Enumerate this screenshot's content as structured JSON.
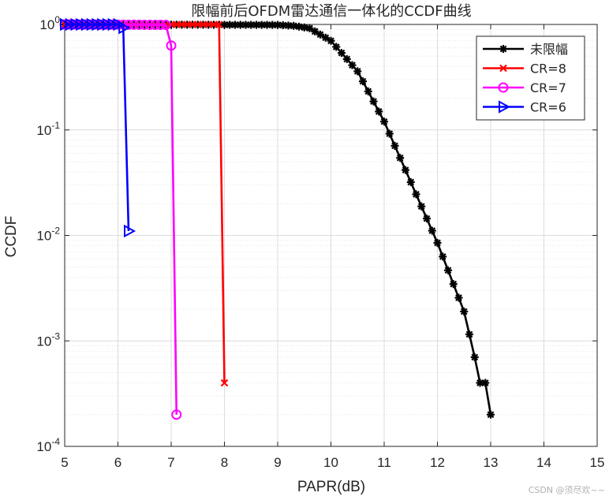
{
  "chart_data": {
    "type": "line",
    "title": "限幅前后OFDM雷达通信一体化的CCDF曲线",
    "xlabel": "PAPR(dB)",
    "ylabel": "CCDF",
    "xlim": [
      5,
      15
    ],
    "ylim_log10": [
      -4,
      0
    ],
    "yscale": "log",
    "grid": true,
    "legend_position": "top-right",
    "x_ticks": [
      "5",
      "6",
      "7",
      "8",
      "9",
      "10",
      "11",
      "12",
      "13",
      "14",
      "15"
    ],
    "y_ticks": [
      {
        "base": "10",
        "exp": "0"
      },
      {
        "base": "10",
        "exp": "-1"
      },
      {
        "base": "10",
        "exp": "-2"
      },
      {
        "base": "10",
        "exp": "-3"
      },
      {
        "base": "10",
        "exp": "-4"
      }
    ],
    "series": [
      {
        "name": "未限幅",
        "color": "#000000",
        "marker": "asterisk",
        "start": 5.0,
        "step": 0.1,
        "end": 13.0,
        "anchors": [
          [
            5.0,
            1.0
          ],
          [
            9.0,
            0.99
          ],
          [
            9.3,
            0.97
          ],
          [
            9.6,
            0.92
          ],
          [
            10.0,
            0.7
          ],
          [
            10.5,
            0.36
          ],
          [
            11.0,
            0.12
          ],
          [
            11.5,
            0.032
          ],
          [
            12.0,
            0.0085
          ],
          [
            12.5,
            0.0019
          ],
          [
            12.7,
            0.0007
          ],
          [
            12.8,
            0.0004
          ],
          [
            12.9,
            0.0004
          ],
          [
            13.0,
            0.0002
          ]
        ]
      },
      {
        "name": "CR=8",
        "color": "#ff0000",
        "marker": "x",
        "start": 5.0,
        "step": 0.1,
        "end": 8.0,
        "anchors": [
          [
            5.0,
            1.0
          ],
          [
            7.9,
            1.0
          ],
          [
            8.0,
            0.0004
          ]
        ]
      },
      {
        "name": "CR=7",
        "color": "#ff00ff",
        "marker": "circle",
        "start": 5.0,
        "step": 0.1,
        "end": 7.1,
        "anchors": [
          [
            5.0,
            1.0
          ],
          [
            6.9,
            0.99
          ],
          [
            7.0,
            0.63
          ],
          [
            7.1,
            0.0002
          ]
        ]
      },
      {
        "name": "CR=6",
        "color": "#0000ff",
        "marker": "triangle-right",
        "start": 5.0,
        "step": 0.1,
        "end": 6.2,
        "anchors": [
          [
            5.0,
            1.0
          ],
          [
            6.0,
            1.0
          ],
          [
            6.1,
            0.93
          ],
          [
            6.2,
            0.011
          ]
        ]
      }
    ]
  },
  "watermark": "CSDN @须尽欢~~"
}
